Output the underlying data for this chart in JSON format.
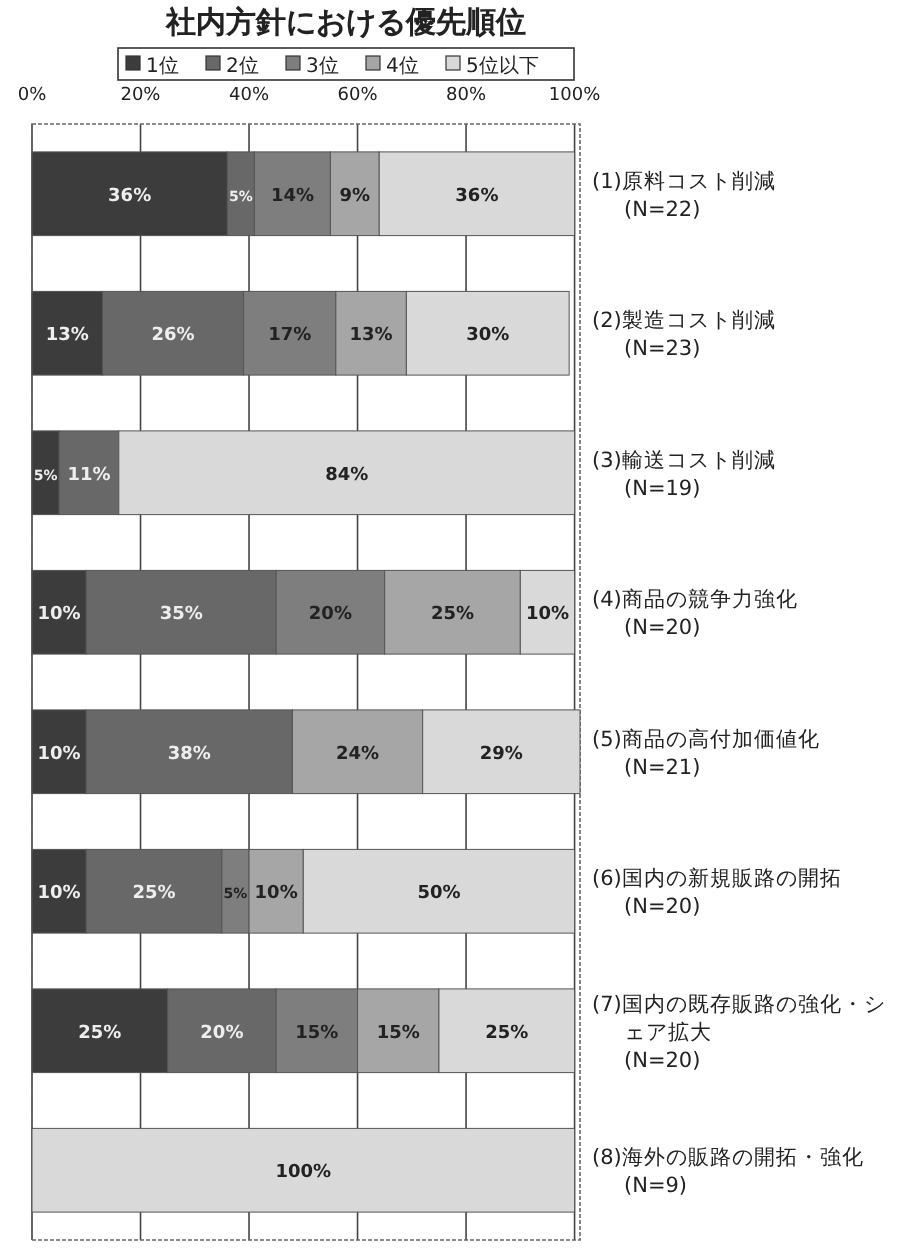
{
  "chart_data": {
    "type": "bar",
    "orientation": "horizontal",
    "stacked": true,
    "title": "社内方針における優先順位",
    "categories": [
      "(1)原料コスト削減\n(N=22)",
      "(2)製造コスト削減\n(N=23)",
      "(3)輸送コスト削減\n(N=19)",
      "(4)商品の競争力強化\n(N=20)",
      "(5)商品の高付加価値化\n(N=21)",
      "(6)国内の新規販路の開拓\n(N=20)",
      "(7)国内の既存販路の強化・シェア拡大\n(N=20)",
      "(8)海外の販路の開拓・強化\n(N=9)"
    ],
    "series": [
      {
        "name": "1位",
        "color": "#3c3c3c",
        "values": [
          36,
          13,
          5,
          10,
          10,
          10,
          25,
          0
        ],
        "value_labels": [
          "36%",
          "13%",
          "5%",
          "10%",
          "10%",
          "10%",
          "25%",
          null
        ]
      },
      {
        "name": "2位",
        "color": "#686868",
        "values": [
          5,
          26,
          11,
          35,
          38,
          25,
          20,
          0
        ],
        "value_labels": [
          "5%",
          "26%",
          "11%",
          "35%",
          "38%",
          "25%",
          "20%",
          null
        ]
      },
      {
        "name": "3位",
        "color": "#7e7e7e",
        "values": [
          14,
          17,
          0,
          20,
          0,
          5,
          15,
          0
        ],
        "value_labels": [
          "14%",
          "17%",
          null,
          "20%",
          null,
          "5%",
          "15%",
          null
        ]
      },
      {
        "name": "4位",
        "color": "#a6a6a6",
        "values": [
          9,
          13,
          0,
          25,
          24,
          10,
          15,
          0
        ],
        "value_labels": [
          "9%",
          "13%",
          null,
          "25%",
          "24%",
          "10%",
          "15%",
          null
        ]
      },
      {
        "name": "5位以下",
        "color": "#d9d9d9",
        "values": [
          36,
          30,
          84,
          10,
          29,
          50,
          25,
          100
        ],
        "value_labels": [
          "36%",
          "30%",
          "84%",
          "10%",
          "29%",
          "50%",
          "25%",
          "100%"
        ]
      }
    ],
    "xlim": [
      0,
      101
    ],
    "xticks": [
      {
        "value": 0,
        "label": "0%"
      },
      {
        "value": 20,
        "label": "20%"
      },
      {
        "value": 40,
        "label": "40%"
      },
      {
        "value": 60,
        "label": "60%"
      },
      {
        "value": 80,
        "label": "80%"
      },
      {
        "value": 100,
        "label": "100%"
      }
    ],
    "grid": "x",
    "legend": "top"
  }
}
